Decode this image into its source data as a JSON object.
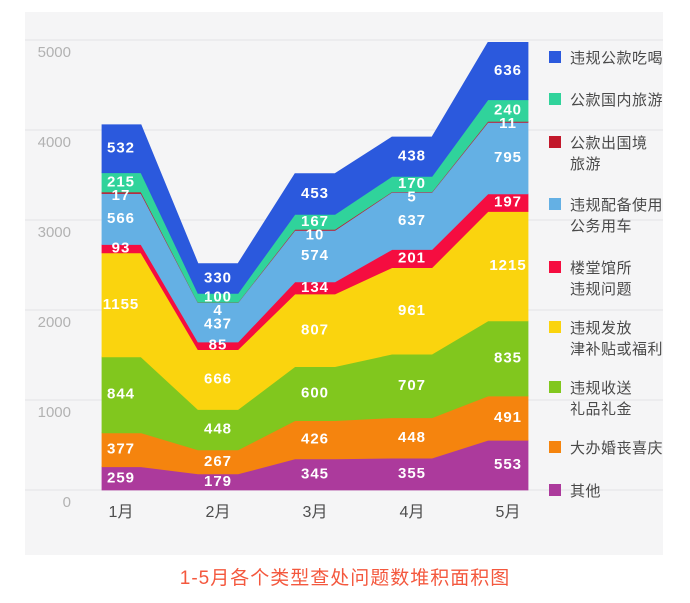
{
  "title_text": "1-5月各个类型查处问题数堆积面积图",
  "colors": {
    "panel_bg": "#f5f5f6",
    "gridline": "#e3e3e5",
    "y_axis_label": "#b2b2b2",
    "x_axis_label": "#4d4d4d",
    "legend_text": "#4a4a4a",
    "value_label": "#ffffff",
    "title": "#f4583e"
  },
  "chart_data": {
    "type": "area",
    "stacked": true,
    "title": "1-5月各个类型查处问题数堆积面积图",
    "xlabel": "",
    "ylabel": "",
    "categories": [
      "1月",
      "2月",
      "3月",
      "4月",
      "5月"
    ],
    "y_ticks": [
      0,
      1000,
      2000,
      3000,
      4000,
      5000
    ],
    "ylim": [
      0,
      5000
    ],
    "grid": true,
    "legend_position": "right",
    "series": [
      {
        "name": "违规公款吃喝",
        "legend_label": "违规公款吃喝",
        "color": "#2b59dd",
        "values": [
          532,
          330,
          453,
          438,
          636
        ]
      },
      {
        "name": "公款国内旅游",
        "legend_label": "公款国内旅游",
        "color": "#30d39b",
        "values": [
          215,
          100,
          167,
          170,
          240
        ]
      },
      {
        "name": "公款出国境旅游",
        "legend_label": "公款出国境\n旅游",
        "color": "#c2182b",
        "values": [
          17,
          4,
          10,
          5,
          11
        ]
      },
      {
        "name": "违规配备使用公务用车",
        "legend_label": "违规配备使用\n公务用车",
        "color": "#64b0e4",
        "values": [
          566,
          437,
          574,
          637,
          795
        ]
      },
      {
        "name": "楼堂馆所违规问题",
        "legend_label": "楼堂馆所\n违规问题",
        "color": "#f50d40",
        "values": [
          93,
          85,
          134,
          201,
          197
        ]
      },
      {
        "name": "违规发放津补贴或福利",
        "legend_label": "违规发放\n津补贴或福利",
        "color": "#fad40e",
        "values": [
          1155,
          666,
          807,
          961,
          1215
        ]
      },
      {
        "name": "违规收送礼品礼金",
        "legend_label": "违规收送\n礼品礼金",
        "color": "#81c71e",
        "values": [
          844,
          448,
          600,
          707,
          835
        ]
      },
      {
        "name": "大办婚丧喜庆",
        "legend_label": "大办婚丧喜庆",
        "color": "#f5840e",
        "values": [
          377,
          267,
          426,
          448,
          491
        ]
      },
      {
        "name": "其他",
        "legend_label": "其他",
        "color": "#ac3a9c",
        "values": [
          259,
          179,
          345,
          355,
          553
        ]
      }
    ]
  }
}
